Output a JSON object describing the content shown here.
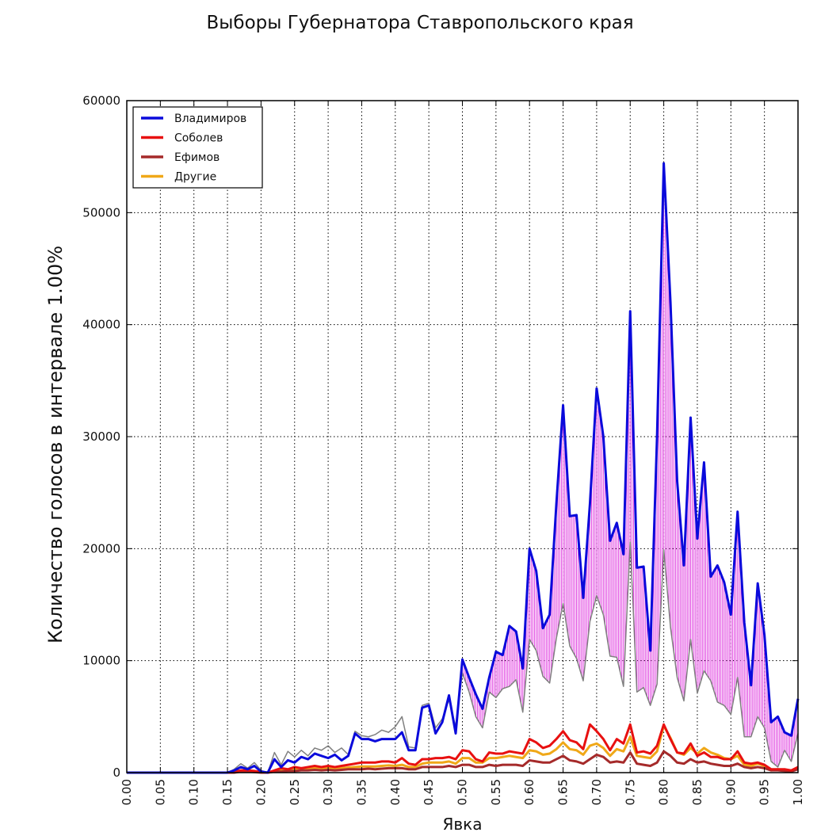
{
  "chart_data": {
    "type": "line",
    "title": "Выборы Губернатора Ставропольского края",
    "xlabel": "Явка",
    "ylabel": "Количество голосов в интервале 1.00%",
    "xlim": [
      0.0,
      1.0
    ],
    "ylim": [
      0,
      60000
    ],
    "xticks": [
      "0.00",
      "0.05",
      "0.10",
      "0.15",
      "0.20",
      "0.25",
      "0.30",
      "0.35",
      "0.40",
      "0.45",
      "0.50",
      "0.55",
      "0.60",
      "0.65",
      "0.70",
      "0.75",
      "0.80",
      "0.85",
      "0.90",
      "0.95",
      "1.00"
    ],
    "yticks": [
      "0",
      "10000",
      "20000",
      "30000",
      "40000",
      "50000",
      "60000"
    ],
    "grid": true,
    "legend_position": "top-left",
    "x": [
      0.0,
      0.01,
      0.02,
      0.03,
      0.04,
      0.05,
      0.06,
      0.07,
      0.08,
      0.09,
      0.1,
      0.11,
      0.12,
      0.13,
      0.14,
      0.15,
      0.16,
      0.17,
      0.18,
      0.19,
      0.2,
      0.21,
      0.22,
      0.23,
      0.24,
      0.25,
      0.26,
      0.27,
      0.28,
      0.29,
      0.3,
      0.31,
      0.32,
      0.33,
      0.34,
      0.35,
      0.36,
      0.37,
      0.38,
      0.39,
      0.4,
      0.41,
      0.42,
      0.43,
      0.44,
      0.45,
      0.46,
      0.47,
      0.48,
      0.49,
      0.5,
      0.51,
      0.52,
      0.53,
      0.54,
      0.55,
      0.56,
      0.57,
      0.58,
      0.59,
      0.6,
      0.61,
      0.62,
      0.63,
      0.64,
      0.65,
      0.66,
      0.67,
      0.68,
      0.69,
      0.7,
      0.71,
      0.72,
      0.73,
      0.74,
      0.75,
      0.76,
      0.77,
      0.78,
      0.79,
      0.8,
      0.81,
      0.82,
      0.83,
      0.84,
      0.85,
      0.86,
      0.87,
      0.88,
      0.89,
      0.9,
      0.91,
      0.92,
      0.93,
      0.94,
      0.95,
      0.96,
      0.97,
      0.98,
      0.99,
      1.0
    ],
    "series": [
      {
        "name": "Владимиров",
        "color": "#0a0adb",
        "width": 3,
        "values": [
          0,
          0,
          0,
          0,
          0,
          0,
          0,
          0,
          0,
          0,
          0,
          0,
          0,
          0,
          0,
          0,
          200,
          500,
          300,
          600,
          100,
          0,
          1200,
          500,
          1100,
          900,
          1400,
          1200,
          1700,
          1500,
          1300,
          1600,
          1100,
          1500,
          3500,
          3000,
          3000,
          2800,
          3000,
          3000,
          3000,
          3600,
          2000,
          2000,
          5800,
          6000,
          3500,
          4500,
          6900,
          3500,
          10100,
          8500,
          7000,
          5700,
          8500,
          10800,
          10500,
          13100,
          12600,
          9300,
          20000,
          18000,
          12900,
          14100,
          24000,
          32800,
          22900,
          23000,
          15600,
          24000,
          34300,
          30000,
          20700,
          22300,
          19500,
          41200,
          18300,
          18400,
          10900,
          30000,
          54400,
          42000,
          26000,
          18500,
          31700,
          20900,
          27700,
          17500,
          18500,
          17000,
          14100,
          23300,
          13400,
          7800,
          16900,
          12300,
          4500,
          5000,
          3600,
          3300,
          6600
        ]
      },
      {
        "name": "Соболев",
        "color": "#e81010",
        "width": 3,
        "values": [
          0,
          0,
          0,
          0,
          0,
          0,
          0,
          0,
          0,
          0,
          0,
          0,
          0,
          0,
          0,
          0,
          100,
          200,
          200,
          150,
          50,
          0,
          200,
          400,
          300,
          500,
          400,
          500,
          600,
          500,
          600,
          500,
          600,
          700,
          800,
          900,
          900,
          900,
          1000,
          1000,
          900,
          1300,
          800,
          700,
          1200,
          1200,
          1300,
          1300,
          1400,
          1200,
          2000,
          1900,
          1200,
          1000,
          1800,
          1700,
          1700,
          1900,
          1800,
          1700,
          3000,
          2700,
          2200,
          2400,
          3000,
          3700,
          2900,
          2700,
          2100,
          4300,
          3700,
          3000,
          2000,
          3000,
          2600,
          4300,
          1800,
          1900,
          1700,
          2400,
          4300,
          3000,
          1800,
          1700,
          2600,
          1500,
          1800,
          1400,
          1400,
          1200,
          1200,
          1900,
          900,
          800,
          900,
          700,
          300,
          300,
          300,
          200,
          500
        ]
      },
      {
        "name": "Ефимов",
        "color": "#a52a2a",
        "width": 3,
        "values": [
          0,
          0,
          0,
          0,
          0,
          0,
          0,
          0,
          0,
          0,
          0,
          0,
          0,
          0,
          0,
          0,
          0,
          100,
          100,
          50,
          0,
          0,
          100,
          100,
          150,
          150,
          200,
          200,
          250,
          200,
          250,
          200,
          250,
          300,
          300,
          300,
          350,
          300,
          350,
          400,
          400,
          400,
          300,
          300,
          500,
          500,
          500,
          500,
          600,
          500,
          700,
          700,
          500,
          500,
          700,
          600,
          700,
          700,
          700,
          600,
          1100,
          1000,
          900,
          900,
          1200,
          1500,
          1100,
          1000,
          800,
          1200,
          1600,
          1400,
          900,
          1000,
          900,
          1800,
          800,
          700,
          600,
          900,
          1900,
          1500,
          900,
          800,
          1200,
          900,
          1000,
          800,
          700,
          600,
          600,
          800,
          500,
          400,
          500,
          400,
          200,
          200,
          150,
          100,
          300
        ]
      },
      {
        "name": "Другие",
        "color": "#f0a818",
        "width": 3,
        "values": [
          0,
          0,
          0,
          0,
          0,
          0,
          0,
          0,
          0,
          0,
          0,
          0,
          0,
          0,
          0,
          0,
          50,
          150,
          150,
          100,
          50,
          0,
          100,
          200,
          200,
          300,
          300,
          300,
          400,
          350,
          400,
          400,
          400,
          450,
          500,
          550,
          550,
          550,
          600,
          650,
          600,
          700,
          500,
          500,
          800,
          900,
          900,
          900,
          1000,
          800,
          1300,
          1300,
          900,
          900,
          1300,
          1300,
          1400,
          1500,
          1400,
          1300,
          2000,
          1900,
          1600,
          1700,
          2100,
          2700,
          2100,
          2000,
          1600,
          2400,
          2600,
          2200,
          1500,
          2100,
          1900,
          3200,
          1500,
          1400,
          1300,
          1900,
          4200,
          3100,
          1800,
          1600,
          2200,
          1700,
          2200,
          1800,
          1600,
          1300,
          1200,
          1500,
          700,
          600,
          800,
          600,
          200,
          300,
          200,
          200,
          400
        ]
      },
      {
        "name": "",
        "color": "#808080",
        "width": 1.5,
        "values": [
          0,
          0,
          0,
          0,
          0,
          0,
          0,
          0,
          0,
          0,
          0,
          0,
          0,
          0,
          0,
          0,
          300,
          800,
          400,
          900,
          200,
          0,
          1800,
          700,
          1900,
          1400,
          2000,
          1500,
          2200,
          2000,
          2400,
          1800,
          2200,
          1600,
          3700,
          3300,
          3200,
          3400,
          3800,
          3600,
          4100,
          5000,
          2300,
          2200,
          6000,
          6200,
          4000,
          4800,
          6500,
          4100,
          8900,
          7200,
          5000,
          4000,
          7200,
          6700,
          7500,
          7700,
          8300,
          5400,
          11900,
          10900,
          8600,
          8000,
          12000,
          15100,
          11300,
          10200,
          8200,
          13500,
          15800,
          14100,
          10400,
          10300,
          7700,
          20600,
          7200,
          7600,
          6000,
          7900,
          19900,
          13000,
          8500,
          6400,
          11900,
          7100,
          9100,
          8200,
          6300,
          6000,
          5200,
          8500,
          3200,
          3200,
          5000,
          4000,
          1000,
          500,
          2000,
          1000,
          3500
        ]
      }
    ]
  }
}
